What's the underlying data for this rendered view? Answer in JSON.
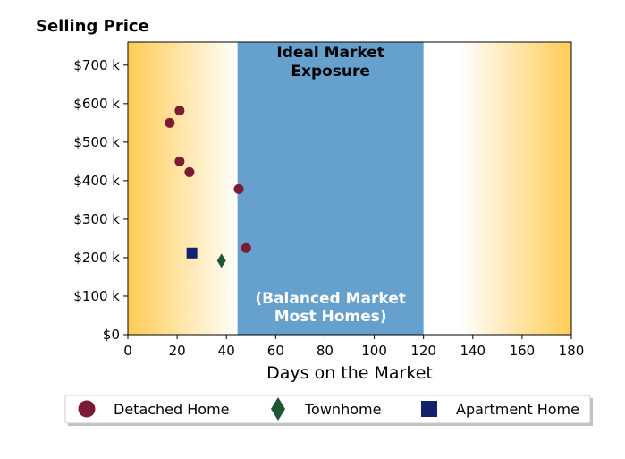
{
  "chart_data": {
    "type": "scatter",
    "title": "Selling Price",
    "xlabel": "Days on the Market",
    "ylabel": "",
    "xlim": [
      0,
      180
    ],
    "ylim": [
      0,
      760000
    ],
    "xticks": [
      0,
      20,
      40,
      60,
      80,
      100,
      120,
      140,
      160,
      180
    ],
    "yticks": [
      0,
      100000,
      200000,
      300000,
      400000,
      500000,
      600000,
      700000
    ],
    "xtick_labels": [
      "0",
      "20",
      "40",
      "60",
      "80",
      "100",
      "120",
      "140",
      "160",
      "180"
    ],
    "ytick_labels": [
      "$0",
      "$100 k",
      "$200 k",
      "$300 k",
      "$400 k",
      "$500 k",
      "$600 k",
      "$700 k"
    ],
    "grid": false,
    "legend_position": "bottom",
    "bands": [
      {
        "x_start": 44.5,
        "x_end": 120,
        "color": "#66a0cc",
        "label_top": [
          "Ideal Market",
          "Exposure"
        ],
        "label_bottom": [
          "(Balanced Market",
          "Most Homes)"
        ]
      }
    ],
    "background_gradient": {
      "edge_color": "#ffcc55",
      "center_color": "#ffffff"
    },
    "series": [
      {
        "name": "Detached Home",
        "marker": "circle",
        "color": "#7b1a33",
        "points": [
          [
            17,
            550000
          ],
          [
            21,
            582000
          ],
          [
            21,
            450000
          ],
          [
            25,
            422000
          ],
          [
            45,
            378000
          ],
          [
            48,
            225000
          ]
        ]
      },
      {
        "name": "Townhome",
        "marker": "diamond",
        "color": "#1e5631",
        "points": [
          [
            38,
            192000
          ]
        ]
      },
      {
        "name": "Apartment Home",
        "marker": "square",
        "color": "#12206e",
        "points": [
          [
            26,
            212000
          ]
        ]
      }
    ]
  }
}
